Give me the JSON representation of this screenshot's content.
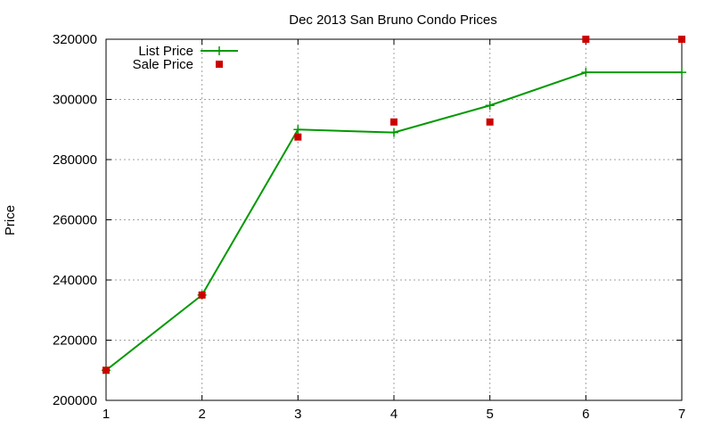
{
  "chart_data": {
    "type": "line",
    "title": "Dec 2013 San Bruno Condo Prices",
    "xlabel": "",
    "ylabel": "Price",
    "x": [
      1,
      2,
      3,
      4,
      5,
      6,
      7
    ],
    "xlim": [
      1,
      7
    ],
    "ylim": [
      200000,
      320000
    ],
    "xticks": [
      "1",
      "2",
      "3",
      "4",
      "5",
      "6",
      "7"
    ],
    "yticks": [
      "200000",
      "220000",
      "240000",
      "260000",
      "280000",
      "300000",
      "320000"
    ],
    "grid": true,
    "legend_position": "top-left",
    "series": [
      {
        "name": "List Price",
        "style": "line-with-plus-markers",
        "color": "#009900",
        "values": [
          210000,
          235000,
          290000,
          289000,
          298000,
          309000,
          309000
        ]
      },
      {
        "name": "Sale Price",
        "style": "square-markers",
        "color": "#cc0000",
        "values": [
          210000,
          235000,
          287500,
          292500,
          292500,
          320000,
          320000
        ]
      }
    ]
  }
}
